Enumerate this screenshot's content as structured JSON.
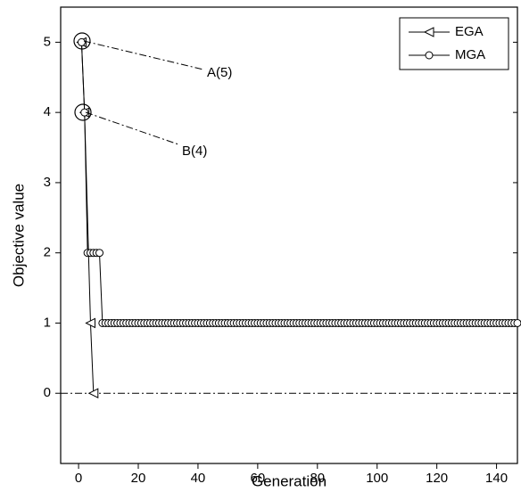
{
  "chart_data": {
    "type": "line",
    "xlabel": "Generation",
    "ylabel": "Objective value",
    "xlim": [
      -6,
      147
    ],
    "ylim": [
      -1,
      5.5
    ],
    "xticks": [
      0,
      20,
      40,
      60,
      80,
      100,
      120,
      140
    ],
    "yticks": [
      0,
      1,
      2,
      3,
      4,
      5
    ],
    "hline": 0,
    "legend": "upper right",
    "series": [
      {
        "name": "EGA",
        "color": "#000000",
        "marker": "triangle-left",
        "x": [
          1,
          2,
          4,
          5
        ],
        "values": [
          5,
          4,
          1,
          0
        ]
      },
      {
        "name": "MGA",
        "color": "#000000",
        "marker": "circle",
        "x": [
          1,
          2,
          3,
          4,
          5,
          6,
          7,
          8,
          9,
          10,
          11,
          12,
          13,
          14,
          15,
          16,
          17,
          18,
          19,
          20,
          21,
          22,
          23,
          24,
          25,
          26,
          27,
          28,
          29,
          30,
          31,
          32,
          33,
          34,
          35,
          36,
          37,
          38,
          39,
          40,
          41,
          42,
          43,
          44,
          45,
          46,
          47,
          48,
          49,
          50,
          51,
          52,
          53,
          54,
          55,
          56,
          57,
          58,
          59,
          60,
          61,
          62,
          63,
          64,
          65,
          66,
          67,
          68,
          69,
          70,
          71,
          72,
          73,
          74,
          75,
          76,
          77,
          78,
          79,
          80,
          81,
          82,
          83,
          84,
          85,
          86,
          87,
          88,
          89,
          90,
          91,
          92,
          93,
          94,
          95,
          96,
          97,
          98,
          99,
          100,
          101,
          102,
          103,
          104,
          105,
          106,
          107,
          108,
          109,
          110,
          111,
          112,
          113,
          114,
          115,
          116,
          117,
          118,
          119,
          120,
          121,
          122,
          123,
          124,
          125,
          126,
          127,
          128,
          129,
          130,
          131,
          132,
          133,
          134,
          135,
          136,
          137,
          138,
          139,
          140,
          141,
          142,
          143,
          144,
          145,
          146,
          147
        ],
        "values": [
          5,
          4,
          2,
          2,
          2,
          2,
          2,
          1,
          1,
          1,
          1,
          1,
          1,
          1,
          1,
          1,
          1,
          1,
          1,
          1,
          1,
          1,
          1,
          1,
          1,
          1,
          1,
          1,
          1,
          1,
          1,
          1,
          1,
          1,
          1,
          1,
          1,
          1,
          1,
          1,
          1,
          1,
          1,
          1,
          1,
          1,
          1,
          1,
          1,
          1,
          1,
          1,
          1,
          1,
          1,
          1,
          1,
          1,
          1,
          1,
          1,
          1,
          1,
          1,
          1,
          1,
          1,
          1,
          1,
          1,
          1,
          1,
          1,
          1,
          1,
          1,
          1,
          1,
          1,
          1,
          1,
          1,
          1,
          1,
          1,
          1,
          1,
          1,
          1,
          1,
          1,
          1,
          1,
          1,
          1,
          1,
          1,
          1,
          1,
          1,
          1,
          1,
          1,
          1,
          1,
          1,
          1,
          1,
          1,
          1,
          1,
          1,
          1,
          1,
          1,
          1,
          1,
          1,
          1,
          1,
          1,
          1,
          1,
          1,
          1,
          1,
          1,
          1,
          1,
          1,
          1,
          1,
          1,
          1,
          1,
          1,
          1,
          1,
          1,
          1,
          1,
          1,
          1,
          1,
          1,
          1,
          1
        ]
      }
    ],
    "annotations": [
      "A(5)",
      "B(4)"
    ]
  }
}
